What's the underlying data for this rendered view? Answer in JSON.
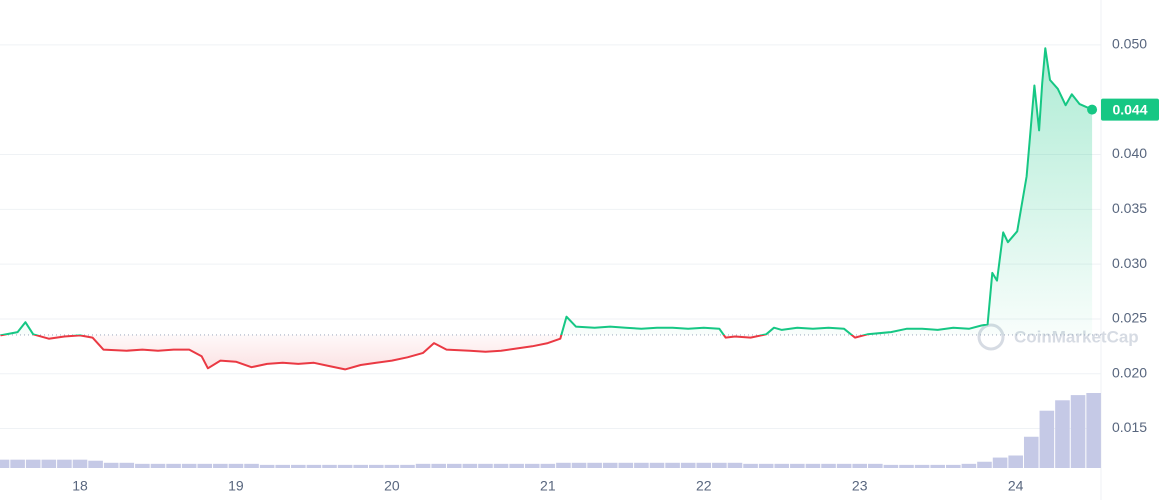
{
  "chart_data": {
    "type": "line",
    "x": [
      17.49,
      17.6,
      17.65,
      17.7,
      17.8,
      17.9,
      18.0,
      18.08,
      18.15,
      18.3,
      18.4,
      18.5,
      18.6,
      18.7,
      18.78,
      18.82,
      18.9,
      19.0,
      19.1,
      19.2,
      19.3,
      19.4,
      19.5,
      19.6,
      19.7,
      19.8,
      19.9,
      20.0,
      20.1,
      20.2,
      20.27,
      20.35,
      20.5,
      20.6,
      20.7,
      20.8,
      20.9,
      21.0,
      21.08,
      21.12,
      21.18,
      21.3,
      21.4,
      21.5,
      21.6,
      21.7,
      21.8,
      21.9,
      22.0,
      22.1,
      22.14,
      22.2,
      22.3,
      22.4,
      22.45,
      22.5,
      22.6,
      22.7,
      22.8,
      22.9,
      22.97,
      23.05,
      23.2,
      23.3,
      23.4,
      23.5,
      23.6,
      23.7,
      23.78,
      23.82,
      23.85,
      23.88,
      23.92,
      23.95,
      24.01,
      24.07,
      24.12,
      24.15,
      24.17,
      24.19,
      24.22,
      24.27,
      24.32,
      24.36,
      24.41,
      24.49
    ],
    "values": [
      0.0235,
      0.0238,
      0.0247,
      0.0236,
      0.0232,
      0.0234,
      0.0235,
      0.0233,
      0.0222,
      0.0221,
      0.0222,
      0.0221,
      0.0222,
      0.0222,
      0.0216,
      0.0205,
      0.0212,
      0.0211,
      0.0206,
      0.0209,
      0.021,
      0.0209,
      0.021,
      0.0207,
      0.0204,
      0.0208,
      0.021,
      0.0212,
      0.0215,
      0.0219,
      0.0228,
      0.0222,
      0.0221,
      0.022,
      0.0221,
      0.0223,
      0.0225,
      0.0228,
      0.0232,
      0.0252,
      0.0243,
      0.0242,
      0.0243,
      0.0242,
      0.0241,
      0.0242,
      0.0242,
      0.0241,
      0.0242,
      0.0241,
      0.0233,
      0.0234,
      0.0233,
      0.0236,
      0.0242,
      0.024,
      0.0242,
      0.0241,
      0.0242,
      0.0241,
      0.0233,
      0.0236,
      0.0238,
      0.0241,
      0.0241,
      0.024,
      0.0242,
      0.0241,
      0.0244,
      0.0245,
      0.0292,
      0.0285,
      0.0329,
      0.032,
      0.033,
      0.038,
      0.0463,
      0.0422,
      0.0465,
      0.0497,
      0.0468,
      0.046,
      0.0445,
      0.0455,
      0.0446,
      0.0441
    ],
    "baseline": 0.02354,
    "up_color": "#16c784",
    "down_color": "#ea3943",
    "current_price_label": "0.044",
    "volume": {
      "color": "#c5c9e6",
      "x": [
        17.5,
        17.6,
        17.7,
        17.8,
        17.9,
        18.0,
        18.1,
        18.2,
        18.3,
        18.4,
        18.5,
        18.6,
        18.7,
        18.8,
        18.9,
        19.0,
        19.1,
        19.2,
        19.3,
        19.4,
        19.5,
        19.6,
        19.7,
        19.8,
        19.9,
        20.0,
        20.1,
        20.2,
        20.3,
        20.4,
        20.5,
        20.6,
        20.7,
        20.8,
        20.9,
        21.0,
        21.1,
        21.2,
        21.3,
        21.4,
        21.5,
        21.6,
        21.7,
        21.8,
        21.9,
        22.0,
        22.1,
        22.2,
        22.3,
        22.4,
        22.5,
        22.6,
        22.7,
        22.8,
        22.9,
        23.0,
        23.1,
        23.2,
        23.3,
        23.4,
        23.5,
        23.6,
        23.7,
        23.8,
        23.9,
        24.0,
        24.1,
        24.2,
        24.3,
        24.4,
        24.5
      ],
      "values": [
        8,
        8,
        8,
        8,
        8,
        8,
        7,
        5,
        5,
        4,
        4,
        4,
        4,
        4,
        4,
        4,
        4,
        3,
        3,
        3,
        3,
        3,
        3,
        3,
        3,
        3,
        3,
        4,
        4,
        4,
        4,
        4,
        4,
        4,
        4,
        4,
        5,
        5,
        5,
        5,
        5,
        5,
        5,
        5,
        5,
        5,
        5,
        5,
        4,
        4,
        4,
        4,
        4,
        4,
        4,
        4,
        4,
        3,
        3,
        3,
        3,
        3,
        4,
        6,
        10,
        12,
        30,
        55,
        65,
        70,
        72
      ]
    },
    "xlim": [
      17.487,
      24.56
    ],
    "xticks": [
      18,
      19,
      20,
      21,
      22,
      23,
      24
    ],
    "ylim": [
      0.0114,
      0.0541
    ],
    "yticks": [
      0.015,
      {
        "value": 0.02,
        "label": "0.020"
      },
      0.025,
      {
        "value": 0.03,
        "label": "0.030"
      },
      0.035,
      {
        "value": 0.04,
        "label": "0.040"
      },
      {
        "value": 0.05,
        "label": "0.050"
      }
    ],
    "grid": true,
    "watermark": "CoinMarketCap"
  }
}
